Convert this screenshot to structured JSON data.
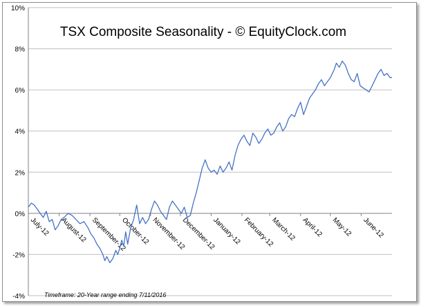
{
  "chart_data": {
    "type": "line",
    "title": "TSX Composite Seasonality - © EquityClock.com",
    "xlabel": "",
    "ylabel": "",
    "footnote": "Timeframe: 20-Year range ending 7/11/2016",
    "y_tick_labels": [
      "10%",
      "8%",
      "6%",
      "4%",
      "2%",
      "0%",
      "-2%",
      "-4%"
    ],
    "y_ticks": [
      10,
      8,
      6,
      4,
      2,
      0,
      -2,
      -4
    ],
    "ylim": [
      -4,
      10
    ],
    "x_range_days": [
      0,
      366
    ],
    "x_tick_labels": [
      "July-12",
      "August-12",
      "September-12",
      "October-12",
      "November-12",
      "December-12",
      "January-12",
      "February-12",
      "March-12",
      "April-12",
      "May-12",
      "June-12"
    ],
    "x_tick_days": [
      0,
      31,
      62,
      92,
      123,
      153,
      184,
      215,
      243,
      274,
      304,
      335
    ],
    "grid": true,
    "line_color": "#4472c4",
    "series": [
      {
        "x": [
          0,
          3,
          6,
          9,
          12,
          15,
          18,
          21,
          24,
          27,
          30,
          33,
          36,
          40,
          44,
          48,
          52,
          56,
          60,
          63,
          66,
          69,
          72,
          75,
          77,
          79,
          82,
          85,
          88,
          90,
          92,
          94,
          96,
          98,
          100,
          103,
          106,
          109,
          112,
          115,
          118,
          121,
          124,
          127,
          130,
          133,
          136,
          139,
          142,
          145,
          148,
          151,
          154,
          157,
          160,
          163,
          166,
          169,
          172,
          175,
          178,
          181,
          184,
          187,
          190,
          193,
          196,
          199,
          202,
          205,
          208,
          211,
          214,
          217,
          220,
          223,
          226,
          229,
          232,
          235,
          238,
          241,
          244,
          247,
          250,
          253,
          256,
          259,
          262,
          265,
          268,
          271,
          274,
          277,
          280,
          283,
          286,
          289,
          292,
          295,
          298,
          301,
          304,
          306,
          308,
          310,
          313,
          316,
          319,
          322,
          325,
          328,
          331,
          334,
          337,
          340,
          343,
          346,
          349,
          352,
          355,
          358,
          361,
          364,
          366
        ],
        "y": [
          0.3,
          0.5,
          0.4,
          0.2,
          0.0,
          -0.2,
          0.1,
          -0.4,
          -0.3,
          -0.8,
          -0.6,
          -0.3,
          -0.2,
          0.0,
          -0.1,
          -0.3,
          -0.5,
          -0.4,
          -0.7,
          -1.0,
          -1.2,
          -1.5,
          -1.7,
          -2.0,
          -2.3,
          -2.1,
          -2.4,
          -2.2,
          -1.8,
          -2.0,
          -1.7,
          -1.3,
          -1.6,
          -0.9,
          -1.5,
          -0.7,
          -0.3,
          0.4,
          -0.5,
          -0.2,
          -0.5,
          -0.3,
          0.2,
          0.6,
          0.4,
          0.1,
          -0.1,
          -0.3,
          0.3,
          0.6,
          0.4,
          0.2,
          0.0,
          0.3,
          -0.2,
          -0.1,
          0.5,
          1.0,
          1.6,
          2.2,
          2.6,
          2.2,
          2.0,
          2.1,
          1.9,
          2.3,
          2.0,
          2.2,
          2.5,
          2.1,
          2.8,
          3.3,
          3.6,
          3.8,
          3.5,
          3.3,
          3.9,
          3.7,
          3.4,
          3.6,
          3.9,
          4.1,
          3.8,
          3.9,
          4.2,
          4.4,
          4.0,
          4.2,
          4.6,
          4.8,
          4.7,
          5.1,
          5.4,
          4.8,
          5.2,
          5.6,
          5.8,
          6.0,
          6.3,
          6.5,
          6.2,
          6.4,
          6.6,
          6.8,
          7.0,
          7.3,
          7.1,
          7.4,
          7.2,
          6.8,
          6.5,
          6.4,
          6.8,
          6.2,
          6.1,
          6.0,
          5.9,
          6.2,
          6.5,
          6.8,
          7.0,
          6.7,
          6.8,
          6.6,
          6.6
        ]
      }
    ]
  }
}
